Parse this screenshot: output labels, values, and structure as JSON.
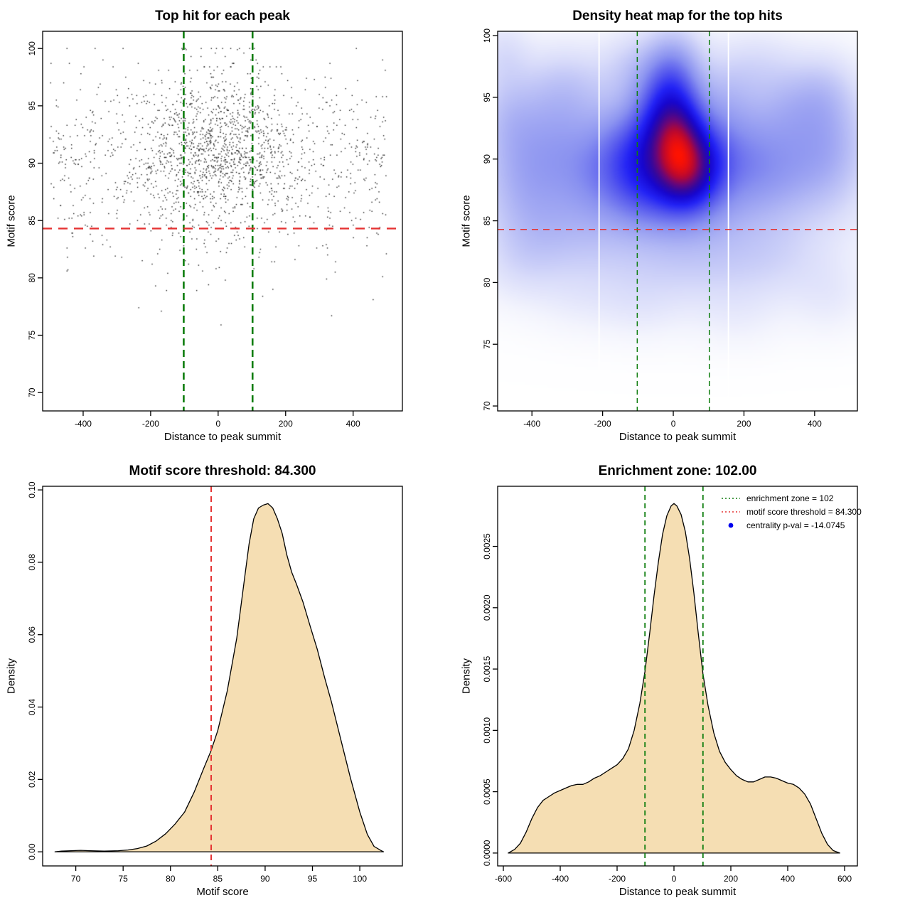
{
  "colors": {
    "background": "#ffffff",
    "red_line": "#e53333",
    "green_line": "#0e7d0e",
    "area_fill": "#f5deb3",
    "area_stroke": "#000000",
    "scatter_point": "#1c1c1c",
    "legend_dot": "#0000ee",
    "box_stroke": "#000000",
    "heat_ramp": [
      [
        0,
        "#ffffff"
      ],
      [
        0.07,
        "#f3f4fd"
      ],
      [
        0.18,
        "#d9dcfa"
      ],
      [
        0.3,
        "#b3b9f5"
      ],
      [
        0.42,
        "#8a92f0"
      ],
      [
        0.54,
        "#5558ee"
      ],
      [
        0.64,
        "#2222f5"
      ],
      [
        0.73,
        "#1606cf"
      ],
      [
        0.8,
        "#33079e"
      ],
      [
        0.86,
        "#6a0678"
      ],
      [
        0.92,
        "#b50733"
      ],
      [
        1,
        "#ff1200"
      ]
    ]
  },
  "chart_data": [
    {
      "type": "scatter",
      "title": "Top hit for each peak",
      "xlabel": "Distance to peak summit",
      "ylabel": "Motif score",
      "xlim": [
        -520,
        546
      ],
      "ylim": [
        68.4,
        101.5
      ],
      "xticks": [
        -400,
        -200,
        0,
        200,
        400
      ],
      "xtick_labels": [
        "-400",
        "-200",
        "0",
        "200",
        "400"
      ],
      "yticks": [
        70,
        75,
        80,
        85,
        90,
        95,
        100
      ],
      "ytick_labels": [
        "70",
        "75",
        "80",
        "85",
        "90",
        "95",
        "100"
      ],
      "motif_score_threshold": 84.3,
      "enrichment_zone": [
        -102,
        102
      ],
      "points": {
        "n": 1900,
        "seed": 42,
        "uniform_frac": 0.45,
        "x_range": [
          -500,
          500
        ],
        "x_center_sd": 115,
        "y_mean": 90.4,
        "y_sd": 3.6,
        "y_center_bonus": 0.9,
        "low_tail_prob": 0.055,
        "y_max": 100,
        "y_min": 69.8
      }
    },
    {
      "type": "heatmap",
      "title": "Density heat map for the top hits",
      "xlabel": "Distance to peak summit",
      "ylabel": "Motif score",
      "xlim": [
        -497,
        521
      ],
      "ylim": [
        69.6,
        100.35
      ],
      "xticks": [
        -400,
        -200,
        0,
        200,
        400
      ],
      "xtick_labels": [
        "-400",
        "-200",
        "0",
        "200",
        "400"
      ],
      "yticks": [
        70,
        75,
        80,
        85,
        90,
        95,
        100
      ],
      "ytick_labels": [
        "70",
        "75",
        "80",
        "85",
        "90",
        "95",
        "100"
      ],
      "motif_score_threshold": 84.3,
      "enrichment_zone": [
        -102,
        102
      ],
      "white_lines_x": [
        -210,
        156
      ],
      "hotspot": {
        "x": 18,
        "y": 91.5
      },
      "blobs": [
        [
          15,
          91.4,
          52,
          2.4,
          1.0
        ],
        [
          35,
          88.7,
          55,
          2.0,
          0.8
        ],
        [
          -15,
          94.3,
          60,
          2.6,
          0.6
        ],
        [
          0,
          97.3,
          55,
          2.2,
          0.42
        ],
        [
          -70,
          89.3,
          70,
          2.6,
          0.6
        ],
        [
          95,
          89.8,
          55,
          2.4,
          0.55
        ],
        [
          -40,
          91.5,
          90,
          3.2,
          0.5
        ],
        [
          -160,
          89.8,
          70,
          2.8,
          0.33
        ],
        [
          -250,
          88.6,
          80,
          2.8,
          0.26
        ],
        [
          -345,
          91.8,
          90,
          3.2,
          0.3
        ],
        [
          -430,
          88.3,
          80,
          2.8,
          0.26
        ],
        [
          -470,
          93.5,
          60,
          2.5,
          0.2
        ],
        [
          -300,
          95.8,
          80,
          2.2,
          0.17
        ],
        [
          -380,
          84.8,
          90,
          2.2,
          0.15
        ],
        [
          -480,
          98.5,
          50,
          1.8,
          0.13
        ],
        [
          180,
          90.3,
          70,
          2.8,
          0.3
        ],
        [
          260,
          88.8,
          90,
          3.0,
          0.28
        ],
        [
          360,
          90.6,
          90,
          3.4,
          0.26
        ],
        [
          455,
          91.3,
          70,
          3.6,
          0.24
        ],
        [
          320,
          94.6,
          70,
          2.2,
          0.16
        ],
        [
          420,
          95.3,
          60,
          2.0,
          0.14
        ],
        [
          155,
          95.2,
          60,
          2.2,
          0.18
        ],
        [
          240,
          97.8,
          70,
          1.8,
          0.1
        ],
        [
          -120,
          97.6,
          60,
          1.8,
          0.14
        ],
        [
          -60,
          86.2,
          120,
          2.0,
          0.22
        ],
        [
          60,
          85.8,
          100,
          2.0,
          0.18
        ],
        [
          -250,
          83.2,
          130,
          2.2,
          0.13
        ],
        [
          60,
          82.6,
          130,
          2.4,
          0.13
        ],
        [
          280,
          82.0,
          110,
          2.2,
          0.11
        ],
        [
          -430,
          81.5,
          80,
          2.0,
          0.1
        ],
        [
          440,
          79.0,
          70,
          2.0,
          0.07
        ],
        [
          -90,
          78.2,
          80,
          1.8,
          0.06
        ],
        [
          180,
          77.5,
          90,
          1.8,
          0.05
        ],
        [
          -260,
          78.8,
          90,
          1.8,
          0.05
        ],
        [
          0,
          80.9,
          200,
          2.2,
          0.08
        ],
        [
          0,
          90.8,
          330,
          4.2,
          0.12
        ],
        [
          0,
          86,
          400,
          4.5,
          0.06
        ]
      ],
      "gamma": 0.62
    },
    {
      "type": "area",
      "title": "Motif score threshold: 84.300",
      "xlabel": "Motif score",
      "ylabel": "Density",
      "xlim": [
        66.5,
        104.5
      ],
      "ylim": [
        -0.0039,
        0.101
      ],
      "xticks": [
        70,
        75,
        80,
        85,
        90,
        95,
        100
      ],
      "xtick_labels": [
        "70",
        "75",
        "80",
        "85",
        "90",
        "95",
        "100"
      ],
      "yticks": [
        0,
        0.02,
        0.04,
        0.06,
        0.08,
        0.1
      ],
      "ytick_labels": [
        "0.00",
        "0.02",
        "0.04",
        "0.06",
        "0.08",
        "0.10"
      ],
      "motif_score_threshold": 84.3,
      "curve": [
        [
          67.8,
          0.0
        ],
        [
          68.5,
          0.0002
        ],
        [
          69.5,
          0.0003
        ],
        [
          70.5,
          0.0004
        ],
        [
          71.5,
          0.0003
        ],
        [
          73,
          0.0002
        ],
        [
          74.5,
          0.0003
        ],
        [
          75.5,
          0.0005
        ],
        [
          76.5,
          0.0009
        ],
        [
          77.5,
          0.0016
        ],
        [
          78.5,
          0.003
        ],
        [
          79.5,
          0.005
        ],
        [
          80.5,
          0.0077
        ],
        [
          81.5,
          0.011
        ],
        [
          82.5,
          0.0165
        ],
        [
          83.5,
          0.023
        ],
        [
          84.3,
          0.028
        ],
        [
          85,
          0.0335
        ],
        [
          86,
          0.0445
        ],
        [
          87,
          0.059
        ],
        [
          87.8,
          0.075
        ],
        [
          88.3,
          0.085
        ],
        [
          88.8,
          0.092
        ],
        [
          89.3,
          0.095
        ],
        [
          89.8,
          0.0958
        ],
        [
          90.3,
          0.0962
        ],
        [
          90.8,
          0.095
        ],
        [
          91.3,
          0.092
        ],
        [
          91.8,
          0.088
        ],
        [
          92.3,
          0.082
        ],
        [
          92.8,
          0.0773
        ],
        [
          93.3,
          0.074
        ],
        [
          94,
          0.069
        ],
        [
          94.8,
          0.062
        ],
        [
          95.5,
          0.056
        ],
        [
          96.3,
          0.048
        ],
        [
          97,
          0.0415
        ],
        [
          98,
          0.031
        ],
        [
          99,
          0.0205
        ],
        [
          100,
          0.011
        ],
        [
          100.8,
          0.0048
        ],
        [
          101.5,
          0.0015
        ],
        [
          102.2,
          0.0004
        ],
        [
          102.5,
          0.0
        ]
      ]
    },
    {
      "type": "area",
      "title": "Enrichment zone: 102.00",
      "xlabel": "Distance to peak summit",
      "ylabel": "Density",
      "xlim": [
        -620,
        645
      ],
      "ylim": [
        -0.000105,
        0.00299
      ],
      "xticks": [
        -600,
        -400,
        -200,
        0,
        200,
        400,
        600
      ],
      "xtick_labels": [
        "-600",
        "-400",
        "-200",
        "0",
        "200",
        "400",
        "600"
      ],
      "yticks": [
        0,
        0.0005,
        0.001,
        0.0015,
        0.002,
        0.0025
      ],
      "ytick_labels": [
        "0.0000",
        "0.0005",
        "0.0010",
        "0.0015",
        "0.0020",
        "0.0025"
      ],
      "enrichment_zone": [
        -102,
        102
      ],
      "curve": [
        [
          -583,
          0.0
        ],
        [
          -560,
          3e-05
        ],
        [
          -540,
          8e-05
        ],
        [
          -520,
          0.00017
        ],
        [
          -500,
          0.00028
        ],
        [
          -480,
          0.00037
        ],
        [
          -460,
          0.00043
        ],
        [
          -440,
          0.00046
        ],
        [
          -420,
          0.00049
        ],
        [
          -400,
          0.00051
        ],
        [
          -380,
          0.00053
        ],
        [
          -360,
          0.00055
        ],
        [
          -340,
          0.00056
        ],
        [
          -320,
          0.00056
        ],
        [
          -300,
          0.00058
        ],
        [
          -280,
          0.00061
        ],
        [
          -260,
          0.00063
        ],
        [
          -240,
          0.00066
        ],
        [
          -220,
          0.00069
        ],
        [
          -200,
          0.00072
        ],
        [
          -180,
          0.00077
        ],
        [
          -160,
          0.00085
        ],
        [
          -140,
          0.001
        ],
        [
          -120,
          0.00122
        ],
        [
          -102,
          0.00148
        ],
        [
          -85,
          0.0018
        ],
        [
          -70,
          0.0021
        ],
        [
          -55,
          0.00237
        ],
        [
          -40,
          0.0026
        ],
        [
          -25,
          0.00275
        ],
        [
          -10,
          0.00283
        ],
        [
          0,
          0.00285
        ],
        [
          10,
          0.00283
        ],
        [
          25,
          0.00276
        ],
        [
          40,
          0.00262
        ],
        [
          55,
          0.0024
        ],
        [
          70,
          0.00212
        ],
        [
          85,
          0.0018
        ],
        [
          102,
          0.00146
        ],
        [
          120,
          0.0012
        ],
        [
          140,
          0.00098
        ],
        [
          160,
          0.00083
        ],
        [
          180,
          0.00074
        ],
        [
          200,
          0.00068
        ],
        [
          220,
          0.00063
        ],
        [
          240,
          0.0006
        ],
        [
          260,
          0.00058
        ],
        [
          280,
          0.00058
        ],
        [
          300,
          0.0006
        ],
        [
          320,
          0.00062
        ],
        [
          340,
          0.00062
        ],
        [
          360,
          0.00061
        ],
        [
          380,
          0.00059
        ],
        [
          400,
          0.00057
        ],
        [
          420,
          0.00056
        ],
        [
          440,
          0.00053
        ],
        [
          460,
          0.00048
        ],
        [
          480,
          0.0004
        ],
        [
          500,
          0.00028
        ],
        [
          520,
          0.00016
        ],
        [
          540,
          7e-05
        ],
        [
          560,
          2e-05
        ],
        [
          583,
          0.0
        ]
      ],
      "legend": {
        "items": [
          {
            "swatch": "dotted",
            "color_key": "green_line",
            "label": "enrichment zone = 102"
          },
          {
            "swatch": "dotted",
            "color_key": "red_line",
            "label": "motif score threshold = 84.300"
          },
          {
            "swatch": "dot",
            "color_key": "legend_dot",
            "label": "centrality p-val = -14.0745"
          }
        ]
      }
    }
  ]
}
